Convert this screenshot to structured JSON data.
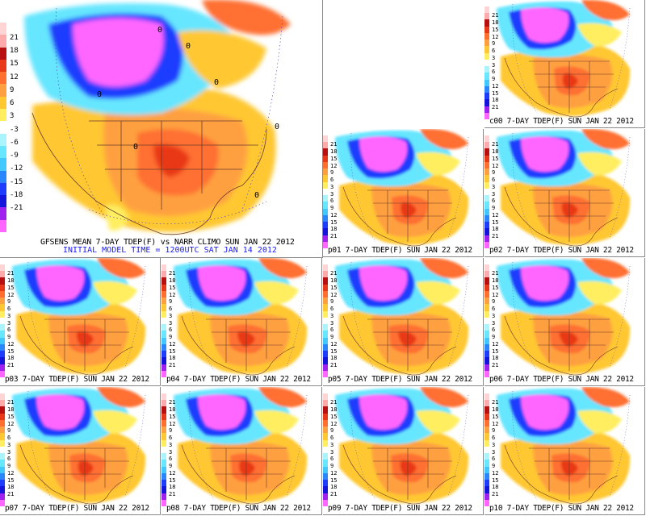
{
  "colors": {
    "palette": [
      "#ff66ff",
      "#a020f0",
      "#1414dc",
      "#1e3cff",
      "#2a86ff",
      "#40c8ff",
      "#66e6ff",
      "#aaf4ff",
      "#ffffff",
      "#ffee60",
      "#ffc830",
      "#ffa040",
      "#ff7030",
      "#e83818",
      "#b81010",
      "#ffaaaa",
      "#ffd4d4"
    ]
  },
  "colorbar": {
    "labels": [
      "21",
      "18",
      "15",
      "12",
      "9",
      "6",
      "3",
      "-3",
      "-6",
      "-9",
      "-12",
      "-15",
      "-18",
      "-21"
    ],
    "small_labels": [
      "21",
      "18",
      "15",
      "12",
      "9",
      "6",
      "3",
      "3",
      "6",
      "9",
      "12",
      "15",
      "18",
      "21"
    ]
  },
  "main": {
    "title": "GFSENS MEAN 7-DAY TDEP(F) vs NARR CLIMO SUN JAN 22 2012",
    "subtitle": "INITIAL MODEL TIME = 1200UTC SAT JAN 14 2012",
    "contour_labels": [
      "0",
      "0",
      "0",
      "0",
      "0",
      "0",
      "0"
    ]
  },
  "members": [
    {
      "id": "c00",
      "caption": "c00 7-DAY TDEP(F) SUN JAN 22 2012"
    },
    {
      "id": "p01",
      "caption": "p01 7-DAY TDEP(F) SUN JAN 22 2012"
    },
    {
      "id": "p02",
      "caption": "p02 7-DAY TDEP(F) SUN JAN 22 2012"
    },
    {
      "id": "p03",
      "caption": "p03 7-DAY TDEP(F) SUN JAN 22 2012"
    },
    {
      "id": "p04",
      "caption": "p04 7-DAY TDEP(F) SUN JAN 22 2012"
    },
    {
      "id": "p05",
      "caption": "p05 7-DAY TDEP(F) SUN JAN 22 2012"
    },
    {
      "id": "p06",
      "caption": "p06 7-DAY TDEP(F) SUN JAN 22 2012"
    },
    {
      "id": "p07",
      "caption": "p07 7-DAY TDEP(F) SUN JAN 22 2012"
    },
    {
      "id": "p08",
      "caption": "p08 7-DAY TDEP(F) SUN JAN 22 2012"
    },
    {
      "id": "p09",
      "caption": "p09 7-DAY TDEP(F) SUN JAN 22 2012"
    },
    {
      "id": "p10",
      "caption": "p10 7-DAY TDEP(F) SUN JAN 22 2012"
    }
  ]
}
